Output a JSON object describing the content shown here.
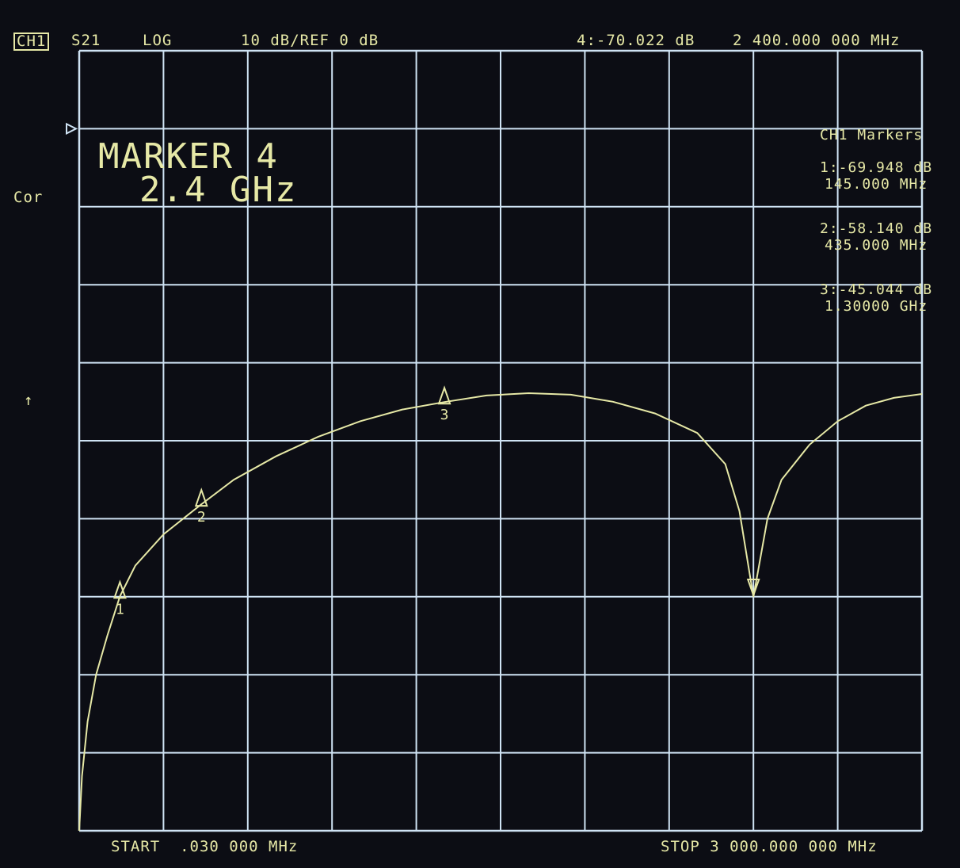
{
  "header": {
    "channel": "CH1",
    "parameter": "S21",
    "format": "LOG",
    "scale_ref": "10 dB/REF 0 dB",
    "active_marker_value": "4:-70.022 dB",
    "active_marker_freq": "2 400.000 000 MHz"
  },
  "left": {
    "cor": "Cor",
    "arrow": "↑"
  },
  "overlay": {
    "line1": "MARKER 4",
    "line2": "2.4 GHz"
  },
  "marker_table": {
    "title": "CH1 Markers",
    "rows": [
      {
        "value": "1:-69.948 dB",
        "freq": "145.000 MHz"
      },
      {
        "value": "2:-58.140 dB",
        "freq": "435.000 MHz"
      },
      {
        "value": "3:-45.044 dB",
        "freq": "1.30000 GHz"
      }
    ]
  },
  "footer": {
    "start": "START  .030 000 MHz",
    "stop": "STOP 3 000.000 000 MHz"
  },
  "colors": {
    "trace": "#e6e8a6",
    "grid": "#cfe3f4",
    "background": "#0c0d14"
  },
  "chart_data": {
    "type": "line",
    "xlim": [
      0.03,
      3000
    ],
    "x_unit": "MHz",
    "ylim": [
      -100,
      0
    ],
    "y_unit": "dB",
    "grid": true,
    "grid_divisions": {
      "x": 10,
      "y": 10
    },
    "reference_level": 0,
    "series": [
      {
        "x": [
          0.03,
          10,
          30,
          60,
          100,
          145,
          200,
          300,
          435,
          550,
          700,
          850,
          1000,
          1150,
          1300,
          1450,
          1600,
          1750,
          1900,
          2050,
          2200,
          2300,
          2350,
          2400,
          2450,
          2500,
          2600,
          2700,
          2800,
          2900,
          3000
        ],
        "y": [
          -100,
          -93,
          -86,
          -80,
          -75,
          -69.948,
          -66,
          -62,
          -58.14,
          -55,
          -52,
          -49.5,
          -47.5,
          -46,
          -45.044,
          -44.2,
          -43.9,
          -44.1,
          -45,
          -46.5,
          -49,
          -53,
          -59,
          -70.022,
          -60,
          -55,
          -50.5,
          -47.5,
          -45.5,
          -44.5,
          -44
        ]
      }
    ],
    "markers": [
      {
        "label": "1",
        "x": 145,
        "y": -69.948,
        "direction": "up"
      },
      {
        "label": "2",
        "x": 435,
        "y": -58.14,
        "direction": "up"
      },
      {
        "label": "3",
        "x": 1300,
        "y": -45.044,
        "direction": "up"
      },
      {
        "label": "4",
        "x": 2400,
        "y": -70.022,
        "direction": "down"
      }
    ]
  }
}
